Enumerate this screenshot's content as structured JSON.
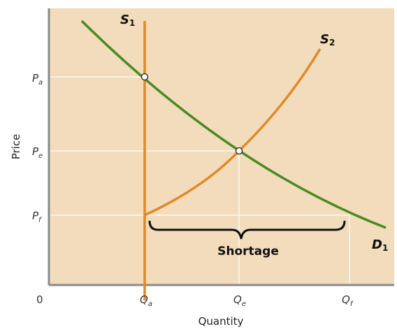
{
  "axes": {
    "x_title": "Quantity",
    "y_title": "Price",
    "origin": "0"
  },
  "y_ticks": [
    {
      "base": "P",
      "sub": "a"
    },
    {
      "base": "P",
      "sub": "e"
    },
    {
      "base": "P",
      "sub": "f"
    }
  ],
  "x_ticks": [
    {
      "base": "Q",
      "sub": "a"
    },
    {
      "base": "Q",
      "sub": "e"
    },
    {
      "base": "Q",
      "sub": "f"
    }
  ],
  "curves": {
    "s1": {
      "base": "S",
      "sub": "1"
    },
    "s2": {
      "base": "S",
      "sub": "2"
    },
    "d1": {
      "base": "D",
      "sub": "1"
    }
  },
  "annotation": {
    "shortage": "Shortage"
  },
  "colors": {
    "plot_bg": "#f2dcbb",
    "supply": "#e08a2a",
    "demand": "#4a8a22",
    "axis": "#8a8a8a",
    "guide": "#ffffff"
  }
}
